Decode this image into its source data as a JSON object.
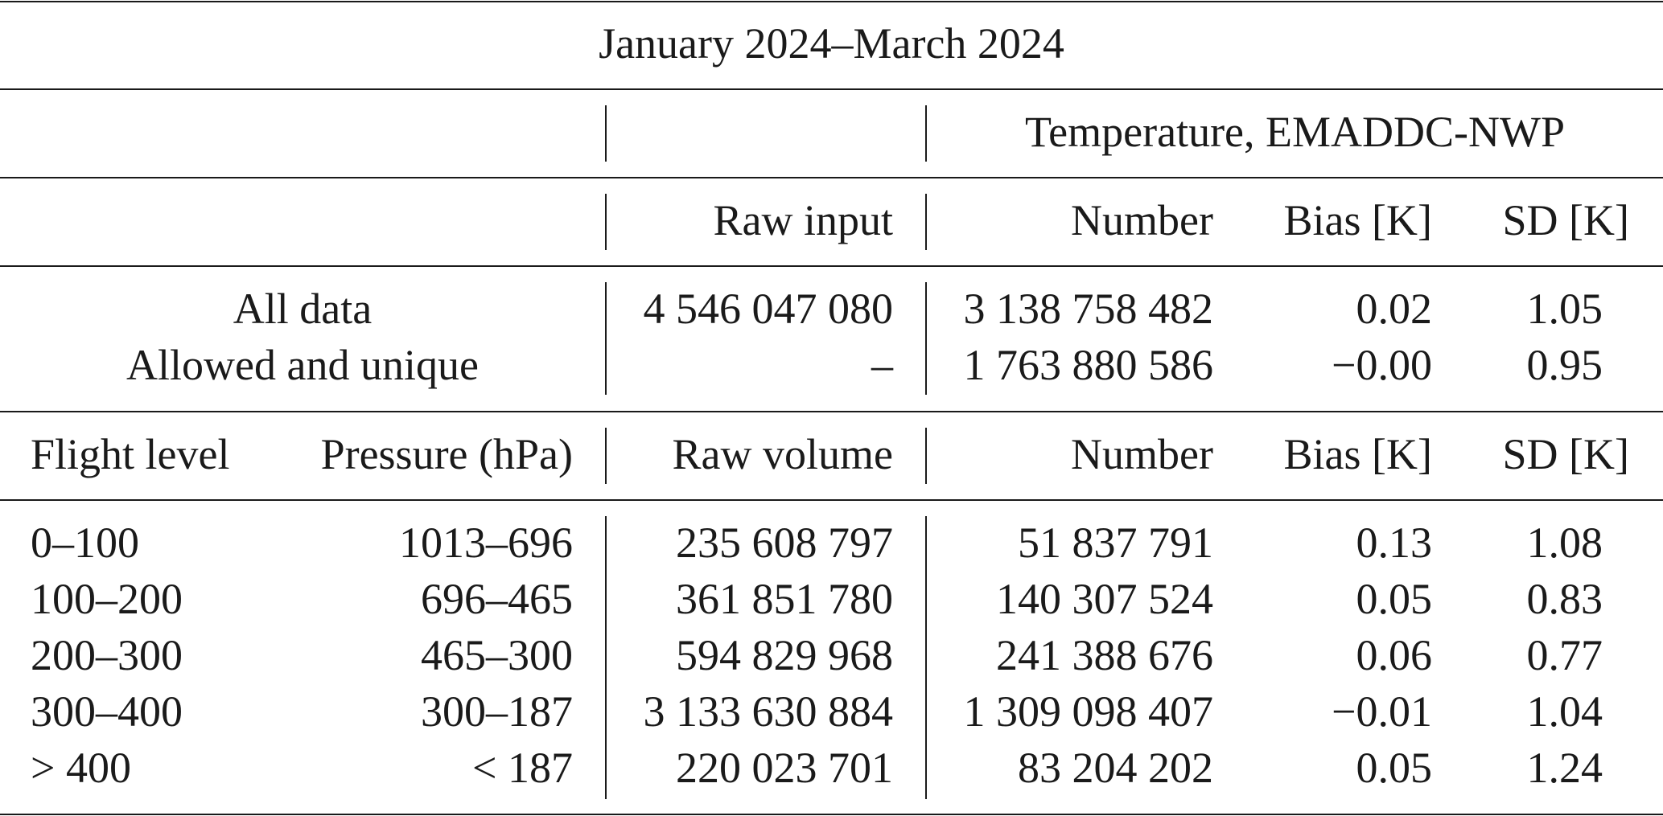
{
  "table": {
    "period": "January 2024–March 2024",
    "group_header": "Temperature, EMADDC-NWP",
    "header1": {
      "raw": "Raw input",
      "number": "Number",
      "bias": "Bias [K]",
      "sd": "SD [K]"
    },
    "summary_rows": [
      {
        "label": "All data",
        "raw": "4 546 047 080",
        "number": "3 138 758 482",
        "bias": "0.02",
        "sd": "1.05"
      },
      {
        "label": "Allowed and unique",
        "raw": "–",
        "number": "1 763 880 586",
        "bias": "−0.00",
        "sd": "0.95"
      }
    ],
    "header2": {
      "flight_level": "Flight level",
      "pressure": "Pressure (hPa)",
      "raw": "Raw volume",
      "number": "Number",
      "bias": "Bias [K]",
      "sd": "SD [K]"
    },
    "rows": [
      {
        "fl": "0–100",
        "pressure": "1013–696",
        "raw": "235 608 797",
        "number": "51 837 791",
        "bias": "0.13",
        "sd": "1.08"
      },
      {
        "fl": "100–200",
        "pressure": "696–465",
        "raw": "361 851 780",
        "number": "140 307 524",
        "bias": "0.05",
        "sd": "0.83"
      },
      {
        "fl": "200–300",
        "pressure": "465–300",
        "raw": "594 829 968",
        "number": "241 388 676",
        "bias": "0.06",
        "sd": "0.77"
      },
      {
        "fl": "300–400",
        "pressure": "300–187",
        "raw": "3 133 630 884",
        "number": "1 309 098 407",
        "bias": "−0.01",
        "sd": "1.04"
      },
      {
        "fl": "> 400",
        "pressure": "< 187",
        "raw": "220 023 701",
        "number": "83 204 202",
        "bias": "0.05",
        "sd": "1.24"
      }
    ]
  }
}
